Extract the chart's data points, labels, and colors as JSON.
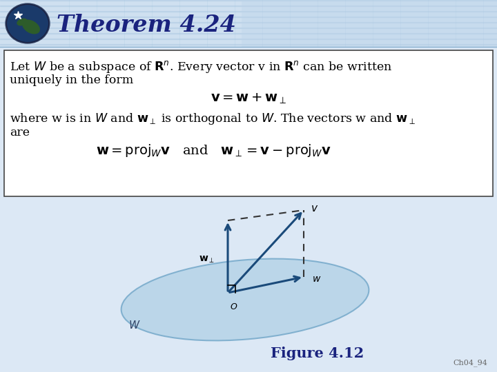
{
  "title": "Theorem 4.24",
  "title_fontsize": 24,
  "title_color": "#1a237e",
  "header_bg_top": "#dce8f5",
  "header_bg_bottom": "#c5d8ed",
  "slide_bg": "#e8f0f8",
  "box_border_color": "#444444",
  "figure_caption": "Figure 4.12",
  "figure_caption_color": "#1a237e",
  "figure_caption_fontsize": 15,
  "watermark": "Ch04_94",
  "ellipse_color": "#b8d4e8",
  "ellipse_edge_color": "#7aaccc",
  "vector_color": "#1a4a7a",
  "text_fontsize": 12.5,
  "eq_fontsize": 13
}
